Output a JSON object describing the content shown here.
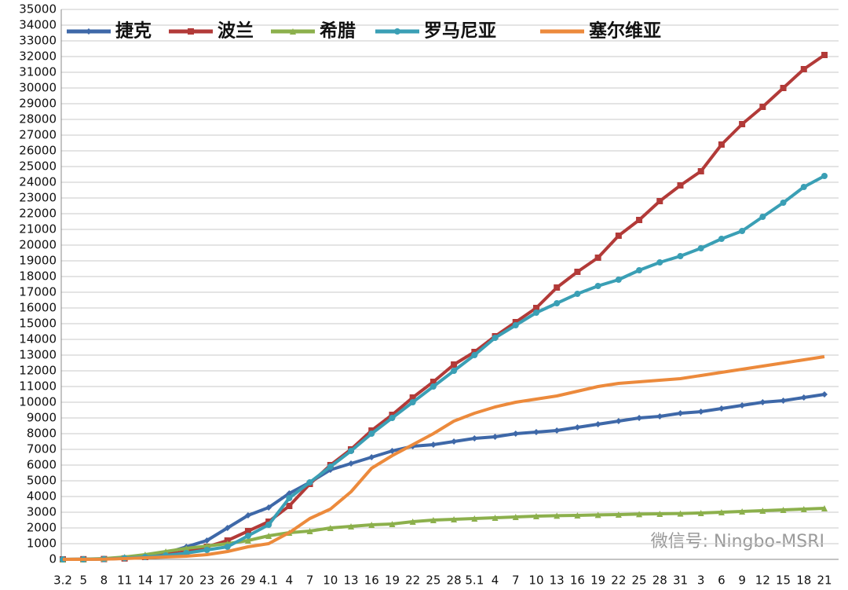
{
  "chart_data": {
    "type": "line",
    "categories": [
      "3.2",
      "5",
      "8",
      "11",
      "14",
      "17",
      "20",
      "23",
      "26",
      "29",
      "4.1",
      "4",
      "7",
      "10",
      "13",
      "16",
      "19",
      "22",
      "25",
      "28",
      "5.1",
      "4",
      "7",
      "10",
      "13",
      "16",
      "19",
      "22",
      "25",
      "28",
      "31",
      "3",
      "6",
      "9",
      "12",
      "15",
      "18",
      "21"
    ],
    "series": [
      {
        "name": "捷克",
        "color": "#3e68a8",
        "marker": "diamond",
        "values": [
          0,
          5,
          30,
          90,
          200,
          400,
          800,
          1200,
          2000,
          2800,
          3300,
          4200,
          4900,
          5700,
          6100,
          6500,
          6900,
          7200,
          7300,
          7500,
          7700,
          7800,
          8000,
          8100,
          8200,
          8400,
          8600,
          8800,
          9000,
          9100,
          9300,
          9400,
          9600,
          9800,
          10000,
          10100,
          10300,
          10500
        ]
      },
      {
        "name": "波兰",
        "color": "#b23a38",
        "marker": "square",
        "values": [
          0,
          10,
          20,
          60,
          150,
          300,
          500,
          800,
          1200,
          1800,
          2400,
          3400,
          4800,
          6000,
          7000,
          8200,
          9200,
          10300,
          11300,
          12400,
          13200,
          14200,
          15100,
          16000,
          17300,
          18300,
          19200,
          20600,
          21600,
          22800,
          23800,
          24700,
          26400,
          27700,
          28800,
          30000,
          31200,
          32100
        ]
      },
      {
        "name": "希腊",
        "color": "#8cb04c",
        "marker": "triangle",
        "values": [
          0,
          10,
          50,
          150,
          300,
          500,
          700,
          850,
          1000,
          1200,
          1500,
          1700,
          1800,
          2000,
          2100,
          2200,
          2250,
          2400,
          2500,
          2550,
          2600,
          2650,
          2700,
          2750,
          2780,
          2800,
          2830,
          2850,
          2880,
          2900,
          2920,
          2950,
          3000,
          3050,
          3100,
          3150,
          3200,
          3250
        ]
      },
      {
        "name": "罗马尼亚",
        "color": "#3a9fb5",
        "marker": "circle",
        "values": [
          0,
          5,
          20,
          80,
          150,
          250,
          400,
          600,
          800,
          1500,
          2200,
          3900,
          4900,
          5900,
          6900,
          8000,
          9000,
          10000,
          11000,
          12000,
          13000,
          14100,
          14900,
          15700,
          16300,
          16900,
          17400,
          17800,
          18400,
          18900,
          19300,
          19800,
          20400,
          20900,
          21800,
          22700,
          23700,
          24400
        ]
      },
      {
        "name": "塞尔维亚",
        "color": "#ec8a3c",
        "marker": "none",
        "values": [
          0,
          0,
          10,
          50,
          100,
          150,
          200,
          300,
          500,
          800,
          1000,
          1700,
          2600,
          3200,
          4300,
          5800,
          6600,
          7300,
          8000,
          8800,
          9300,
          9700,
          10000,
          10200,
          10400,
          10700,
          11000,
          11200,
          11300,
          11400,
          11500,
          11700,
          11900,
          12100,
          12300,
          12500,
          12700,
          12900
        ]
      }
    ],
    "ylim": [
      0,
      35000
    ],
    "yticks": [
      0,
      1000,
      2000,
      3000,
      4000,
      5000,
      6000,
      7000,
      8000,
      9000,
      10000,
      11000,
      12000,
      13000,
      14000,
      15000,
      16000,
      17000,
      18000,
      19000,
      20000,
      21000,
      22000,
      23000,
      24000,
      25000,
      26000,
      27000,
      28000,
      29000,
      30000,
      31000,
      32000,
      33000,
      34000,
      35000
    ],
    "grid": true,
    "legend": "top",
    "annotation": "微信号: Ningbo-MSRI"
  }
}
